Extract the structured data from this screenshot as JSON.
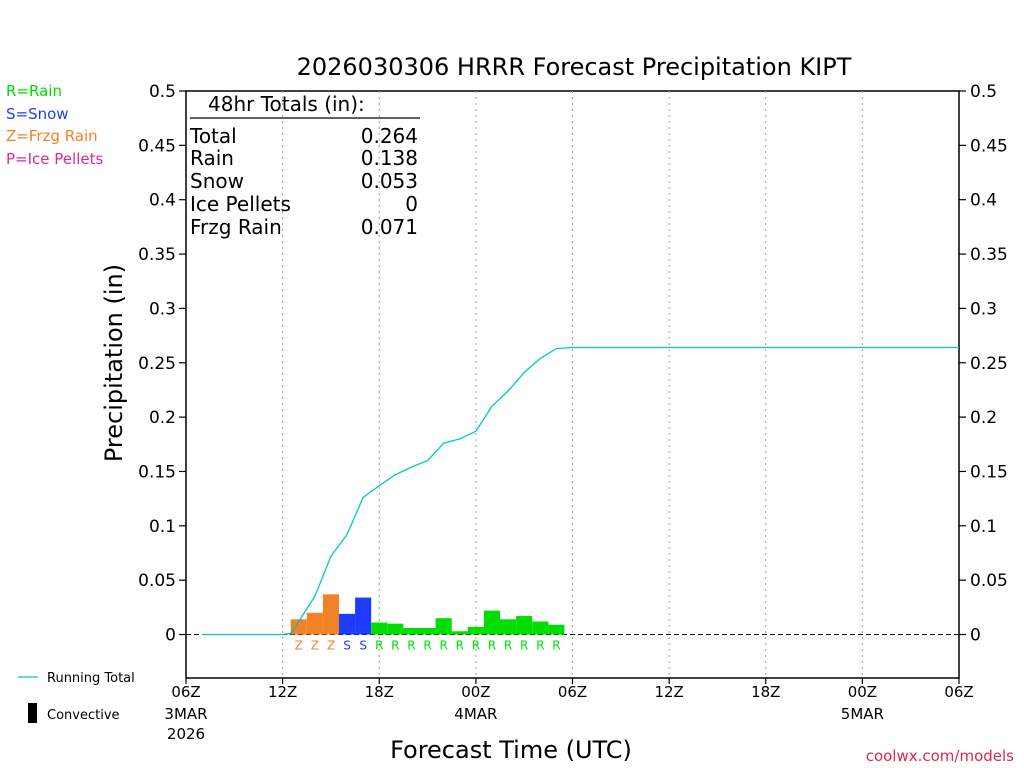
{
  "colors": {
    "rain": "#00dd00",
    "snow": "#1e3cff",
    "frzg_rain": "#f08228",
    "ice_pellets": "#e0288c",
    "running_total": "#00c8c8",
    "axis": "#000000",
    "grid": "#a0a0a0",
    "credit": "#e0284a"
  },
  "legend": {
    "rain": "R=Rain",
    "snow": "S=Snow",
    "frzg_rain": "Z=Frzg Rain",
    "ice_pellets": "P=Ice Pellets",
    "running_total": "Running Total",
    "convective": "Convective"
  },
  "totals": {
    "heading": "48hr Totals (in):",
    "rows": [
      {
        "label": "Total",
        "value": "0.264"
      },
      {
        "label": "Rain",
        "value": "0.138"
      },
      {
        "label": "Snow",
        "value": "0.053"
      },
      {
        "label": "Ice Pellets",
        "value": "0"
      },
      {
        "label": "Frzg Rain",
        "value": "0.071"
      }
    ]
  },
  "credit": "coolwx.com/models",
  "chart_data": {
    "type": "bar",
    "title": "2026030306 HRRR Forecast Precipitation KIPT",
    "xlabel": "Forecast Time (UTC)",
    "ylabel": "Precipitation (in)",
    "ylim": [
      -0.04,
      0.5
    ],
    "xlim_hours": [
      0,
      48
    ],
    "yticks": [
      0,
      0.05,
      0.1,
      0.15,
      0.2,
      0.25,
      0.3,
      0.35,
      0.4,
      0.45,
      0.5
    ],
    "ytick_labels": [
      "0",
      "0.05",
      "0.1",
      "0.15",
      "0.2",
      "0.25",
      "0.3",
      "0.35",
      "0.4",
      "0.45",
      "0.5"
    ],
    "xticks": [
      {
        "hour": 0,
        "label": "06Z",
        "date1": "3MAR",
        "date2": "2026"
      },
      {
        "hour": 6,
        "label": "12Z"
      },
      {
        "hour": 12,
        "label": "18Z"
      },
      {
        "hour": 18,
        "label": "00Z",
        "date1": "4MAR"
      },
      {
        "hour": 24,
        "label": "06Z"
      },
      {
        "hour": 30,
        "label": "12Z"
      },
      {
        "hour": 36,
        "label": "18Z"
      },
      {
        "hour": 42,
        "label": "00Z",
        "date1": "5MAR"
      },
      {
        "hour": 48,
        "label": "06Z"
      }
    ],
    "grid": "vertical dotted",
    "bars": [
      {
        "hour": 7,
        "value": 0.014,
        "type": "Z"
      },
      {
        "hour": 8,
        "value": 0.02,
        "type": "Z"
      },
      {
        "hour": 9,
        "value": 0.037,
        "type": "Z"
      },
      {
        "hour": 10,
        "value": 0.019,
        "type": "S"
      },
      {
        "hour": 11,
        "value": 0.034,
        "type": "S"
      },
      {
        "hour": 12,
        "value": 0.011,
        "type": "R"
      },
      {
        "hour": 13,
        "value": 0.01,
        "type": "R"
      },
      {
        "hour": 14,
        "value": 0.006,
        "type": "R"
      },
      {
        "hour": 15,
        "value": 0.006,
        "type": "R"
      },
      {
        "hour": 16,
        "value": 0.015,
        "type": "R"
      },
      {
        "hour": 17,
        "value": 0.003,
        "type": "R"
      },
      {
        "hour": 18,
        "value": 0.007,
        "type": "R"
      },
      {
        "hour": 19,
        "value": 0.022,
        "type": "R"
      },
      {
        "hour": 20,
        "value": 0.014,
        "type": "R"
      },
      {
        "hour": 21,
        "value": 0.017,
        "type": "R"
      },
      {
        "hour": 22,
        "value": 0.012,
        "type": "R"
      },
      {
        "hour": 23,
        "value": 0.009,
        "type": "R"
      }
    ],
    "series": [
      {
        "name": "Running Total",
        "x": [
          1,
          2,
          3,
          4,
          5,
          6,
          6.5,
          7,
          8,
          9,
          10,
          11,
          12,
          13,
          14,
          15,
          16,
          17,
          18,
          19,
          20,
          21,
          22,
          23,
          24,
          48
        ],
        "values": [
          0,
          0,
          0,
          0,
          0,
          0,
          0.001,
          0.012,
          0.035,
          0.072,
          0.092,
          0.126,
          0.137,
          0.147,
          0.154,
          0.16,
          0.176,
          0.18,
          0.187,
          0.21,
          0.224,
          0.241,
          0.254,
          0.263,
          0.264,
          0.264
        ]
      }
    ]
  }
}
